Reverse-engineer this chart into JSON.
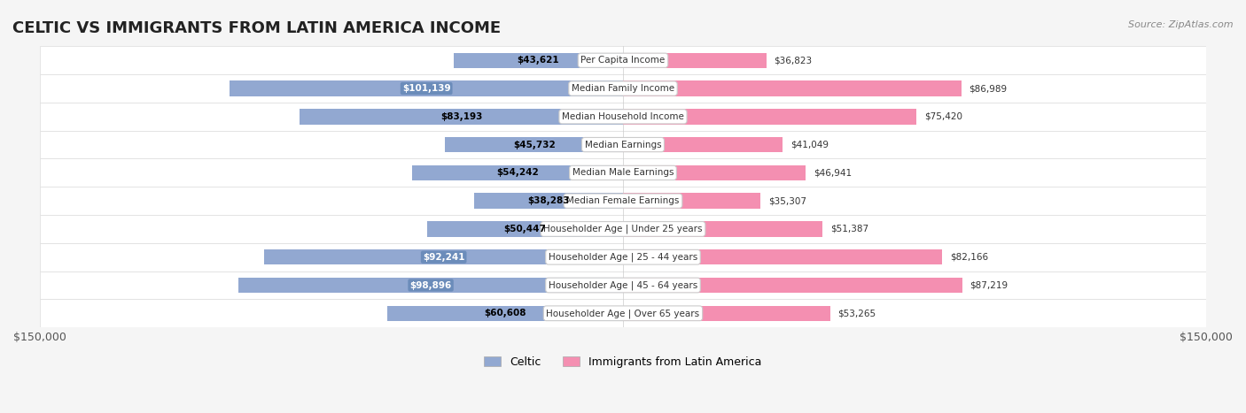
{
  "title": "CELTIC VS IMMIGRANTS FROM LATIN AMERICA INCOME",
  "source": "Source: ZipAtlas.com",
  "categories": [
    "Per Capita Income",
    "Median Family Income",
    "Median Household Income",
    "Median Earnings",
    "Median Male Earnings",
    "Median Female Earnings",
    "Householder Age | Under 25 years",
    "Householder Age | 25 - 44 years",
    "Householder Age | 45 - 64 years",
    "Householder Age | Over 65 years"
  ],
  "celtic_values": [
    43621,
    101139,
    83193,
    45732,
    54242,
    38283,
    50447,
    92241,
    98896,
    60608
  ],
  "immigrant_values": [
    36823,
    86989,
    75420,
    41049,
    46941,
    35307,
    51387,
    82166,
    87219,
    53265
  ],
  "celtic_labels": [
    "$43,621",
    "$101,139",
    "$83,193",
    "$45,732",
    "$54,242",
    "$38,283",
    "$50,447",
    "$92,241",
    "$98,896",
    "$60,608"
  ],
  "immigrant_labels": [
    "$36,823",
    "$86,989",
    "$75,420",
    "$41,049",
    "$46,941",
    "$35,307",
    "$51,387",
    "$82,166",
    "$87,219",
    "$53,265"
  ],
  "celtic_color": "#92a8d1",
  "immigrant_color": "#f48fb1",
  "celtic_label_bg": [
    "#92a8d1",
    "#6b8cba",
    "#92a8d1",
    "#92a8d1",
    "#92a8d1",
    "#92a8d1",
    "#92a8d1",
    "#6b8cba",
    "#6b8cba",
    "#92a8d1"
  ],
  "immigrant_label_bg": [
    "#f48fb1",
    "#f48fb1",
    "#f48fb1",
    "#f48fb1",
    "#f48fb1",
    "#f48fb1",
    "#f48fb1",
    "#f48fb1",
    "#f48fb1",
    "#f48fb1"
  ],
  "celtic_text_colors": [
    "black",
    "white",
    "black",
    "black",
    "black",
    "black",
    "black",
    "white",
    "white",
    "black"
  ],
  "max_value": 150000,
  "background_color": "#f5f5f5",
  "row_bg_color": "#ffffff",
  "row_alt_color": "#f0f0f0"
}
